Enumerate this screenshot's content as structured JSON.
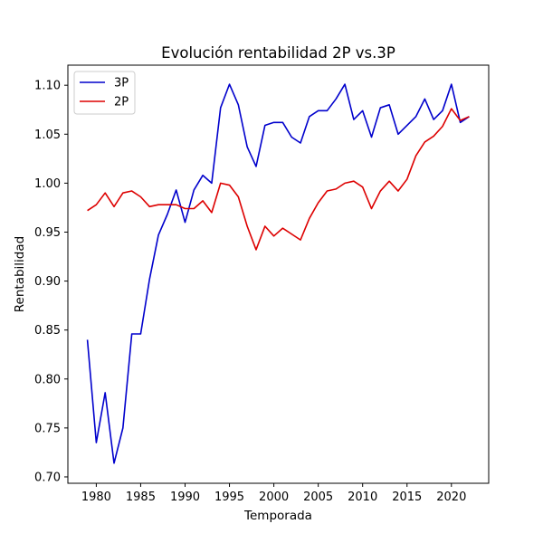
{
  "chart_data": {
    "type": "line",
    "title": "Evolución rentabilidad 2P vs.3P",
    "xlabel": "Temporada",
    "ylabel": "Rentabilidad",
    "xlim": [
      1976.8,
      2024.2
    ],
    "ylim": [
      0.6935,
      1.1205
    ],
    "xticks": [
      1980,
      1985,
      1990,
      1995,
      2000,
      2005,
      2010,
      2015,
      2020
    ],
    "xtick_labels": [
      "1980",
      "1985",
      "1990",
      "1995",
      "2000",
      "2005",
      "2010",
      "2015",
      "2020"
    ],
    "yticks": [
      0.7,
      0.75,
      0.8,
      0.85,
      0.9,
      0.95,
      1.0,
      1.05,
      1.1
    ],
    "ytick_labels": [
      "0.70",
      "0.75",
      "0.80",
      "0.85",
      "0.90",
      "0.95",
      "1.00",
      "1.05",
      "1.10"
    ],
    "grid": false,
    "legend_position": "top-left",
    "x": [
      1979,
      1980,
      1981,
      1982,
      1983,
      1984,
      1985,
      1986,
      1987,
      1988,
      1989,
      1990,
      1991,
      1992,
      1993,
      1994,
      1995,
      1996,
      1997,
      1998,
      1999,
      2000,
      2001,
      2002,
      2003,
      2004,
      2005,
      2006,
      2007,
      2008,
      2009,
      2010,
      2011,
      2012,
      2013,
      2014,
      2015,
      2016,
      2017,
      2018,
      2019,
      2020,
      2021,
      2022
    ],
    "series": [
      {
        "name": "3P",
        "color": "#0000cc",
        "values": [
          0.84,
          0.735,
          0.786,
          0.714,
          0.75,
          0.846,
          0.846,
          0.902,
          0.947,
          0.968,
          0.993,
          0.96,
          0.993,
          1.008,
          1.0,
          1.077,
          1.101,
          1.08,
          1.037,
          1.017,
          1.059,
          1.062,
          1.062,
          1.047,
          1.041,
          1.068,
          1.074,
          1.074,
          1.086,
          1.101,
          1.065,
          1.074,
          1.047,
          1.077,
          1.08,
          1.05,
          1.059,
          1.068,
          1.086,
          1.065,
          1.074,
          1.101,
          1.062,
          1.068
        ]
      },
      {
        "name": "2P",
        "color": "#dd0000",
        "values": [
          0.972,
          0.978,
          0.99,
          0.976,
          0.99,
          0.992,
          0.986,
          0.976,
          0.978,
          0.978,
          0.978,
          0.974,
          0.974,
          0.982,
          0.97,
          1.0,
          0.998,
          0.986,
          0.956,
          0.932,
          0.956,
          0.946,
          0.954,
          0.948,
          0.942,
          0.964,
          0.98,
          0.992,
          0.994,
          1.0,
          1.002,
          0.996,
          0.974,
          0.992,
          1.002,
          0.992,
          1.004,
          1.028,
          1.042,
          1.048,
          1.058,
          1.076,
          1.064,
          1.068
        ]
      }
    ]
  }
}
